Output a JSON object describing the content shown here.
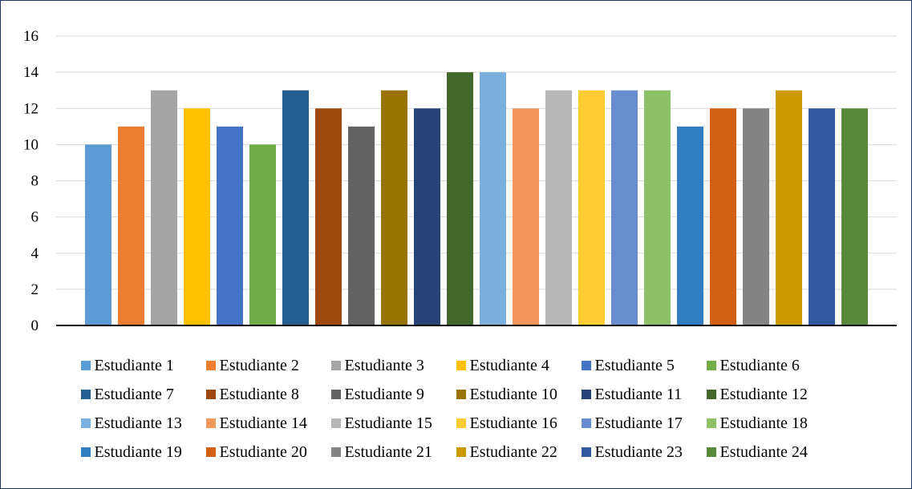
{
  "chart_data": {
    "type": "bar",
    "title": "",
    "xlabel": "",
    "ylabel": "",
    "ylim": [
      0,
      16
    ],
    "yticks": [
      0,
      2,
      4,
      6,
      8,
      10,
      12,
      14,
      16
    ],
    "grid": true,
    "legend_position": "bottom",
    "series": [
      {
        "name": "Estudiante 1",
        "value": 10,
        "color": "#5B9BD5"
      },
      {
        "name": "Estudiante 2",
        "value": 11,
        "color": "#ED7D31"
      },
      {
        "name": "Estudiante 3",
        "value": 13,
        "color": "#A5A5A5"
      },
      {
        "name": "Estudiante 4",
        "value": 12,
        "color": "#FFC000"
      },
      {
        "name": "Estudiante 5",
        "value": 11,
        "color": "#4472C4"
      },
      {
        "name": "Estudiante 6",
        "value": 10,
        "color": "#70AD47"
      },
      {
        "name": "Estudiante 7",
        "value": 13,
        "color": "#255E91"
      },
      {
        "name": "Estudiante 8",
        "value": 12,
        "color": "#9E480E"
      },
      {
        "name": "Estudiante 9",
        "value": 11,
        "color": "#636363"
      },
      {
        "name": "Estudiante 10",
        "value": 13,
        "color": "#997300"
      },
      {
        "name": "Estudiante 11",
        "value": 12,
        "color": "#264478"
      },
      {
        "name": "Estudiante 12",
        "value": 14,
        "color": "#43682B"
      },
      {
        "name": "Estudiante 13",
        "value": 14,
        "color": "#7CAFDD"
      },
      {
        "name": "Estudiante 14",
        "value": 12,
        "color": "#F1975A"
      },
      {
        "name": "Estudiante 15",
        "value": 13,
        "color": "#B7B7B7"
      },
      {
        "name": "Estudiante 16",
        "value": 13,
        "color": "#FFCD33"
      },
      {
        "name": "Estudiante 17",
        "value": 13,
        "color": "#698ED0"
      },
      {
        "name": "Estudiante 18",
        "value": 13,
        "color": "#8CC168"
      },
      {
        "name": "Estudiante 19",
        "value": 11,
        "color": "#327DC2"
      },
      {
        "name": "Estudiante 20",
        "value": 12,
        "color": "#D26012"
      },
      {
        "name": "Estudiante 21",
        "value": 12,
        "color": "#848484"
      },
      {
        "name": "Estudiante 22",
        "value": 13,
        "color": "#CC9A00"
      },
      {
        "name": "Estudiante 23",
        "value": 12,
        "color": "#335AA1"
      },
      {
        "name": "Estudiante 24",
        "value": 12,
        "color": "#5A8A39"
      }
    ]
  }
}
